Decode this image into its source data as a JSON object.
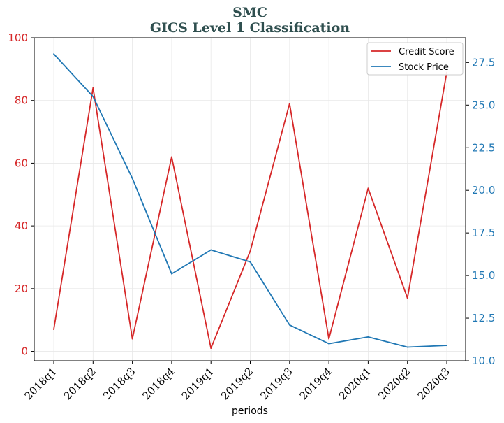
{
  "chart_data": {
    "type": "line",
    "title": "SMC",
    "subtitle": "GICS Level 1 Classification",
    "xlabel": "periods",
    "categories": [
      "2018q1",
      "2018q2",
      "2018q3",
      "2018q4",
      "2019q1",
      "2019q2",
      "2019q3",
      "2019q4",
      "2020q1",
      "2020q2",
      "2020q3"
    ],
    "series": [
      {
        "name": "Credit Score",
        "axis": "left",
        "color": "#d62728",
        "values": [
          7,
          84,
          4,
          62,
          1,
          32,
          79,
          4,
          52,
          17,
          89
        ]
      },
      {
        "name": "Stock Price",
        "axis": "right",
        "color": "#1f77b4",
        "values": [
          28.0,
          25.5,
          20.7,
          15.1,
          16.5,
          15.8,
          12.1,
          11.0,
          11.4,
          10.8,
          10.9
        ]
      }
    ],
    "ylim_left": [
      -3,
      100
    ],
    "yticks_left": [
      0,
      20,
      40,
      60,
      80,
      100
    ],
    "ylim_right": [
      10,
      28.95
    ],
    "yticks_right": [
      10.0,
      12.5,
      15.0,
      17.5,
      20.0,
      22.5,
      25.0,
      27.5
    ],
    "grid": true,
    "legend_position": "top-right"
  }
}
